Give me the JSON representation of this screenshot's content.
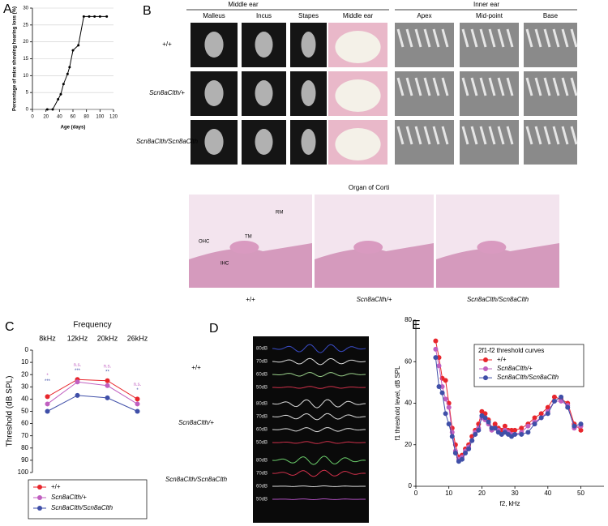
{
  "panel_labels": [
    "A",
    "B",
    "C",
    "D",
    "E"
  ],
  "panel_b": {
    "groups": [
      "Middle ear",
      "Inner ear"
    ],
    "columns": [
      "Malleus",
      "Incus",
      "Stapes",
      "Middle ear",
      "Apex",
      "Mid-point",
      "Base"
    ],
    "rows": [
      "+/+",
      "Scn8aClth/+",
      "Scn8aClth/Scn8aClth"
    ],
    "corti_title": "Organ of Corti",
    "corti_labels": [
      "RM",
      "TM",
      "OHC",
      "IHC"
    ],
    "corti_captions": [
      "+/+",
      "Scn8aClth/+",
      "Scn8aClth/Scn8aClth"
    ]
  },
  "panel_d": {
    "rows": [
      {
        "genotype": "+/+",
        "levels": [
          "80dB",
          "70dB",
          "60dB",
          "50dB"
        ]
      },
      {
        "genotype": "Scn8aClth/+",
        "levels": [
          "80dB",
          "70dB",
          "60dB",
          "50dB"
        ]
      },
      {
        "genotype": "Scn8aClth/Scn8aClth",
        "levels": [
          "80dB",
          "70dB",
          "60dB",
          "50dB"
        ]
      }
    ]
  },
  "chart_data": [
    {
      "type": "line",
      "xlabel": "Age (days)",
      "ylabel": "Percentage of mice showing hearing loss (%)",
      "x": [
        22,
        30,
        38,
        42,
        46,
        52,
        55,
        60,
        68,
        76,
        84,
        92,
        100,
        110
      ],
      "series": [
        {
          "color": "#000000",
          "values": [
            0,
            0,
            3,
            4.5,
            7.5,
            10.5,
            12.5,
            17.5,
            19,
            27.5,
            27.5,
            27.5,
            27.5,
            27.5
          ]
        }
      ],
      "xlim": [
        0,
        120
      ],
      "xticks": [
        0,
        20,
        40,
        60,
        80,
        100,
        120
      ],
      "ylim": [
        0,
        30
      ],
      "yticks": [
        0,
        5,
        10,
        15,
        20,
        25,
        30
      ],
      "grid": true
    },
    {
      "type": "line",
      "xlabel": "Frequency",
      "ylabel": "Threshold (dB SPL)",
      "categories": [
        "8kHz",
        "12kHz",
        "20kHz",
        "26kHz"
      ],
      "series": [
        {
          "name": "+/+",
          "color": "#e8262c",
          "values": [
            38,
            24,
            25,
            40
          ]
        },
        {
          "name": "Scn8aClth/+",
          "color": "#c05fc0",
          "values": [
            44,
            26,
            29,
            44
          ]
        },
        {
          "name": "Scn8aClth/Scn8aClth",
          "color": "#3f4fa8",
          "values": [
            50,
            37,
            39,
            50
          ]
        }
      ],
      "annotations": [
        [
          "*",
          "***"
        ],
        [
          "n.s.",
          "***"
        ],
        [
          "n.s.",
          "**"
        ],
        [
          "n.s.",
          "*"
        ]
      ],
      "ylim": [
        0,
        100
      ],
      "y_inverted": true,
      "yticks": [
        0,
        10,
        20,
        30,
        40,
        50,
        60,
        70,
        80,
        90,
        100
      ]
    },
    {
      "type": "line",
      "xlabel": "f2, kHz",
      "ylabel": "f1 threshold level, dB SPL",
      "legend_title": "2f1-f2 threshold curves",
      "x": [
        6,
        7,
        8,
        9,
        10,
        11,
        12,
        13,
        14,
        15,
        16,
        17,
        18,
        19,
        20,
        21,
        22,
        23,
        24,
        25,
        26,
        27,
        28,
        29,
        30,
        32,
        34,
        36,
        38,
        40,
        42,
        44,
        46,
        48,
        50
      ],
      "series": [
        {
          "name": "+/+",
          "color": "#e8262c",
          "values": [
            70,
            62,
            52,
            51,
            40,
            28,
            20,
            14,
            15,
            18,
            20,
            24,
            27,
            30,
            36,
            35,
            32,
            28,
            30,
            28,
            27,
            29,
            27,
            27,
            27,
            28,
            30,
            33,
            35,
            38,
            43,
            42,
            40,
            30,
            27
          ]
        },
        {
          "name": "Scn8aClth/+",
          "color": "#c05fc0",
          "values": [
            66,
            58,
            48,
            42,
            38,
            26,
            17,
            13,
            14,
            17,
            19,
            22,
            26,
            28,
            33,
            32,
            30,
            27,
            28,
            27,
            25,
            27,
            26,
            25,
            25,
            26,
            29,
            31,
            33,
            36,
            41,
            41,
            39,
            28,
            29
          ]
        },
        {
          "name": "Scn8aClth/Scn8aClth",
          "color": "#3f4fa8",
          "values": [
            62,
            48,
            45,
            35,
            30,
            24,
            16,
            12,
            13,
            16,
            18,
            22,
            25,
            27,
            34,
            33,
            31,
            28,
            28,
            26,
            25,
            26,
            25,
            24,
            25,
            25,
            26,
            30,
            33,
            35,
            41,
            43,
            38,
            29,
            30
          ]
        }
      ],
      "xlim": [
        0,
        57
      ],
      "xticks": [
        0,
        10,
        20,
        30,
        40,
        50
      ],
      "ylim": [
        0,
        80
      ],
      "yticks": [
        0,
        20,
        40,
        60,
        80
      ]
    }
  ]
}
